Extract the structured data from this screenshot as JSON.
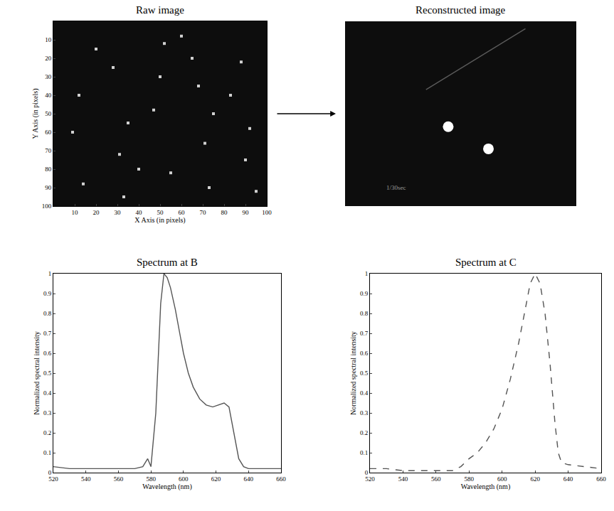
{
  "chart_data": [
    {
      "type": "scatter",
      "title": "Raw image",
      "x_label": "X Axis (in pixels)",
      "y_label": "Y Axis (in pixels)",
      "xlim": [
        0,
        100
      ],
      "ylim": [
        100,
        0
      ],
      "xticks": [
        10,
        20,
        30,
        40,
        50,
        60,
        70,
        80,
        90,
        100
      ],
      "yticks": [
        10,
        20,
        30,
        40,
        50,
        60,
        70,
        80,
        90,
        100
      ],
      "grid": false,
      "series": [
        {
          "x": [
            9,
            14,
            28,
            31,
            33,
            47,
            52,
            55,
            68,
            71,
            73,
            88,
            92,
            95,
            12,
            35,
            50,
            75,
            90,
            20,
            60,
            83,
            40,
            65
          ],
          "y": [
            60,
            88,
            25,
            72,
            95,
            48,
            12,
            82,
            35,
            66,
            90,
            22,
            58,
            92,
            40,
            55,
            30,
            50,
            75,
            15,
            8,
            40,
            80,
            20
          ],
          "color": "#d0d0d0",
          "marker": "square"
        }
      ]
    },
    {
      "type": "scatter",
      "title": "Reconstructed image",
      "xlim": [
        0,
        100
      ],
      "ylim": [
        100,
        0
      ],
      "tick_labels": false,
      "grid": false,
      "series": [
        {
          "type": "line",
          "x": [
            35,
            78
          ],
          "y": [
            37,
            4
          ],
          "color": "#5a5a5a",
          "line_style": "solid"
        },
        {
          "x": [
            44.6,
            62
          ],
          "y": [
            57,
            69
          ],
          "color": "#ffffff",
          "marker": "circle"
        }
      ],
      "annotations": [
        {
          "text": "1/30sec",
          "x": 22,
          "y": 90
        }
      ]
    },
    {
      "type": "line",
      "title": "Spectrum at B",
      "x_label": "Wavelength (nm)",
      "y_label": "Normalized spectral intensity",
      "xlim": [
        520,
        660
      ],
      "ylim": [
        0,
        1
      ],
      "xticks": [
        520,
        540,
        560,
        580,
        600,
        620,
        640,
        660
      ],
      "yticks": [
        0,
        0.1,
        0.2,
        0.3,
        0.4,
        0.5,
        0.6,
        0.7,
        0.8,
        0.9,
        1
      ],
      "grid": false,
      "series": [
        {
          "x": [
            520,
            530,
            540,
            550,
            560,
            570,
            575,
            578,
            580,
            583,
            586,
            588,
            590,
            592,
            595,
            598,
            600,
            603,
            606,
            610,
            614,
            618,
            622,
            625,
            628,
            631,
            634,
            637,
            640,
            650,
            660
          ],
          "values": [
            0.03,
            0.02,
            0.02,
            0.02,
            0.02,
            0.02,
            0.03,
            0.07,
            0.03,
            0.3,
            0.85,
            1,
            0.98,
            0.93,
            0.82,
            0.68,
            0.6,
            0.5,
            0.43,
            0.37,
            0.34,
            0.33,
            0.34,
            0.35,
            0.33,
            0.2,
            0.07,
            0.03,
            0.02,
            0.02,
            0.02
          ],
          "color": "#555555",
          "line_style": "solid"
        }
      ]
    },
    {
      "type": "line",
      "title": "Spectrum at C",
      "x_label": "Wavelength (nm)",
      "y_label": "Normalized spectral intensity",
      "xlim": [
        520,
        660
      ],
      "ylim": [
        0,
        1
      ],
      "xticks": [
        520,
        540,
        560,
        580,
        600,
        620,
        640,
        660
      ],
      "yticks": [
        0,
        0.1,
        0.2,
        0.3,
        0.4,
        0.5,
        0.6,
        0.7,
        0.8,
        0.9,
        1
      ],
      "grid": false,
      "series": [
        {
          "x": [
            520,
            530,
            540,
            550,
            560,
            570,
            575,
            580,
            585,
            590,
            595,
            600,
            605,
            610,
            614,
            617,
            620,
            623,
            626,
            629,
            632,
            634,
            636,
            640,
            650,
            660
          ],
          "values": [
            0.02,
            0.02,
            0.01,
            0.01,
            0.01,
            0.01,
            0.03,
            0.07,
            0.1,
            0.15,
            0.22,
            0.32,
            0.47,
            0.65,
            0.82,
            0.95,
            1,
            0.95,
            0.8,
            0.55,
            0.25,
            0.1,
            0.05,
            0.04,
            0.03,
            0.02
          ],
          "color": "#555555",
          "line_style": "dashed"
        }
      ]
    }
  ]
}
